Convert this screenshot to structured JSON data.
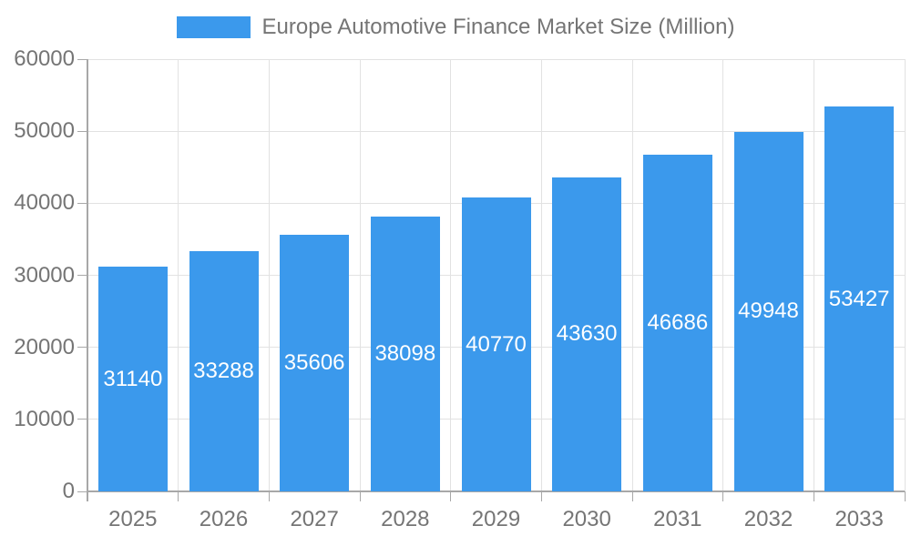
{
  "legend": {
    "label": "Europe Automotive Finance Market Size (Million)"
  },
  "colors": {
    "bar": "#3b99ec",
    "bar_label_text": "#ffffff",
    "axis_line": "#a8a8a8",
    "grid_line": "#e2e2e2",
    "tick_text": "#757575",
    "background": "#ffffff"
  },
  "chart_data": {
    "type": "bar",
    "title": "Europe Automotive Finance Market Size (Million)",
    "series_name": "Europe Automotive Finance Market Size (Million)",
    "categories": [
      "2025",
      "2026",
      "2027",
      "2028",
      "2029",
      "2030",
      "2031",
      "2032",
      "2033"
    ],
    "values": [
      31140,
      33288,
      35606,
      38098,
      40770,
      43630,
      46686,
      49948,
      53427
    ],
    "xlabel": "",
    "ylabel": "",
    "ylim": [
      0,
      60000
    ],
    "yticks": [
      0,
      10000,
      20000,
      30000,
      40000,
      50000,
      60000
    ],
    "grid": true,
    "legend_position": "top-center",
    "value_labels": "inside-center"
  }
}
